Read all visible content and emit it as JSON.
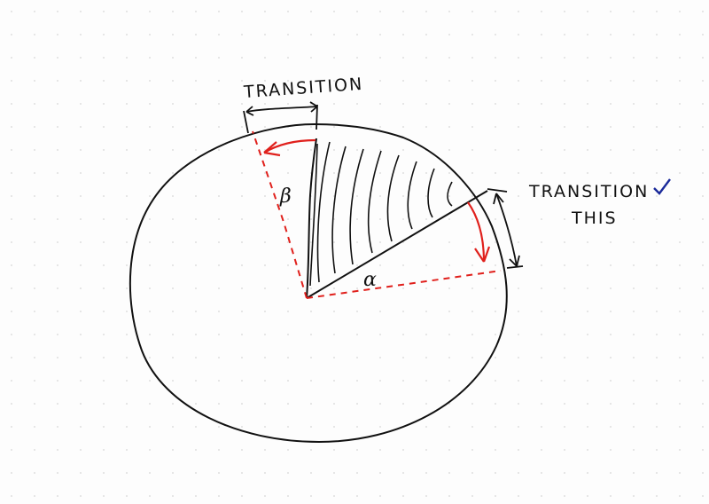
{
  "labels": {
    "transition_top": "TRANSITION",
    "transition_right_line1": "TRANSITION",
    "transition_right_line2": "THIS",
    "angle_beta": "β",
    "angle_alpha": "α"
  },
  "colors": {
    "ink": "#111111",
    "red": "#e0201c",
    "blue_mark": "#1a2a9a",
    "dot_grid": "#d6d6d6",
    "paper": "#fdfdfd"
  }
}
